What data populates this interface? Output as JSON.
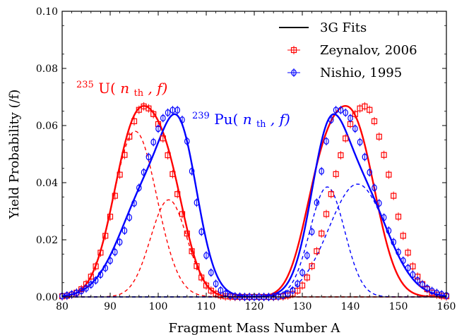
{
  "chart_data": {
    "type": "line",
    "xlabel": "Fragment Mass Number A",
    "ylabel": "Yield Probability (/f)",
    "xlim": [
      80,
      160
    ],
    "ylim": [
      0,
      0.1
    ],
    "xticks": [
      "80",
      "90",
      "100",
      "110",
      "120",
      "130",
      "140",
      "150",
      "160"
    ],
    "yticks": [
      "0.00",
      "0.02",
      "0.04",
      "0.06",
      "0.08",
      "0.10"
    ],
    "legend": {
      "position": "top-right",
      "entries": [
        "3G Fits",
        "Zeynalov, 2006",
        "Nishio, 1995"
      ]
    },
    "annotations": [
      {
        "sup": "235",
        "main": "U(",
        "var": "n",
        "sub": "th",
        "rest": ", f)",
        "color": "#ff0000"
      },
      {
        "sup": "239",
        "main": "Pu(",
        "var": "n",
        "sub": "th",
        "rest": ", f)",
        "color": "#0000ff"
      }
    ],
    "series": [
      {
        "name": "Zeynalov, 2006",
        "color": "#ff0000",
        "marker": "square",
        "x": [
          80,
          81,
          82,
          83,
          84,
          85,
          86,
          87,
          88,
          89,
          90,
          91,
          92,
          93,
          94,
          95,
          96,
          97,
          98,
          99,
          100,
          101,
          102,
          103,
          104,
          105,
          106,
          107,
          108,
          109,
          110,
          111,
          112,
          113,
          114,
          115,
          116,
          117,
          118,
          119,
          120,
          121,
          122,
          123,
          124,
          125,
          126,
          127,
          128,
          129,
          130,
          131,
          132,
          133,
          134,
          135,
          136,
          137,
          138,
          139,
          140,
          141,
          142,
          143,
          144,
          145,
          146,
          147,
          148,
          149,
          150,
          151,
          152,
          153,
          154,
          155,
          156,
          157,
          158,
          159,
          160
        ],
        "y": [
          0.0002,
          0.0004,
          0.0008,
          0.0015,
          0.0027,
          0.0045,
          0.0071,
          0.0107,
          0.0155,
          0.0214,
          0.0281,
          0.0354,
          0.0428,
          0.0497,
          0.0561,
          0.0615,
          0.0655,
          0.0667,
          0.066,
          0.064,
          0.0605,
          0.0555,
          0.0496,
          0.043,
          0.036,
          0.029,
          0.0222,
          0.016,
          0.0108,
          0.0068,
          0.004,
          0.0022,
          0.0011,
          0.0005,
          0.0002,
          0.0001,
          0.0,
          0.0,
          0.0,
          0.0,
          0.0,
          0.0,
          0.0,
          0.0,
          0.0,
          0.0001,
          0.0002,
          0.0005,
          0.0011,
          0.0022,
          0.004,
          0.0068,
          0.0108,
          0.016,
          0.0222,
          0.029,
          0.036,
          0.043,
          0.0496,
          0.0555,
          0.0605,
          0.064,
          0.066,
          0.0667,
          0.0655,
          0.0615,
          0.0561,
          0.0497,
          0.0428,
          0.0354,
          0.0281,
          0.0214,
          0.0155,
          0.0107,
          0.0071,
          0.0045,
          0.0027,
          0.0015,
          0.0008,
          0.0004,
          0.0002
        ]
      },
      {
        "name": "Nishio, 1995",
        "color": "#0000ff",
        "marker": "circle",
        "x": [
          80,
          81,
          82,
          83,
          84,
          85,
          86,
          87,
          88,
          89,
          90,
          91,
          92,
          93,
          94,
          95,
          96,
          97,
          98,
          99,
          100,
          101,
          102,
          103,
          104,
          105,
          106,
          107,
          108,
          109,
          110,
          111,
          112,
          113,
          114,
          115,
          116,
          117,
          118,
          119,
          120,
          121,
          122,
          123,
          124,
          125,
          126,
          127,
          128,
          129,
          130,
          131,
          132,
          133,
          134,
          135,
          136,
          137,
          138,
          139,
          140,
          141,
          142,
          143,
          144,
          145,
          146,
          147,
          148,
          149,
          150,
          151,
          152,
          153,
          154,
          155,
          156,
          157,
          158,
          159,
          160
        ],
        "y": [
          0.0003,
          0.0005,
          0.0009,
          0.0014,
          0.0021,
          0.003,
          0.0043,
          0.0058,
          0.0078,
          0.0101,
          0.0127,
          0.0157,
          0.0192,
          0.0232,
          0.0278,
          0.0328,
          0.0382,
          0.0436,
          0.049,
          0.0542,
          0.0589,
          0.0626,
          0.0645,
          0.0654,
          0.0654,
          0.062,
          0.0545,
          0.044,
          0.033,
          0.0228,
          0.0145,
          0.0085,
          0.0046,
          0.0023,
          0.0011,
          0.0005,
          0.0002,
          0.0001,
          0.0,
          0.0,
          0.0,
          0.0,
          0.0,
          0.0,
          0.0001,
          0.0002,
          0.0005,
          0.0011,
          0.0023,
          0.0046,
          0.0085,
          0.0145,
          0.0228,
          0.033,
          0.044,
          0.0545,
          0.062,
          0.0654,
          0.0654,
          0.0645,
          0.0626,
          0.0589,
          0.0542,
          0.049,
          0.0436,
          0.0382,
          0.0328,
          0.0278,
          0.0232,
          0.0192,
          0.0157,
          0.0127,
          0.0101,
          0.0078,
          0.0058,
          0.0043,
          0.003,
          0.0021,
          0.0014,
          0.0009,
          0.0005
        ]
      }
    ],
    "fits": [
      {
        "color": "#ff0000",
        "dash": false,
        "curve": "sum",
        "components": [
          {
            "amp": 0.058,
            "mu": 95.2,
            "sigma": 4.5
          },
          {
            "amp": 0.034,
            "mu": 102.2,
            "sigma": 3.8
          },
          {
            "amp": 0.058,
            "mu": 140.8,
            "sigma": 4.5
          },
          {
            "amp": 0.034,
            "mu": 133.8,
            "sigma": 3.8
          }
        ]
      },
      {
        "color": "#ff0000",
        "dash": true,
        "curve": "each",
        "components": [
          {
            "amp": 0.058,
            "mu": 95.2,
            "sigma": 4.5
          },
          {
            "amp": 0.034,
            "mu": 102.2,
            "sigma": 3.8
          }
        ]
      },
      {
        "color": "#0000ff",
        "dash": false,
        "curve": "sum",
        "components": [
          {
            "amp": 0.0395,
            "mu": 98.5,
            "sigma": 6.0
          },
          {
            "amp": 0.0385,
            "mu": 104.8,
            "sigma": 3.6
          },
          {
            "amp": 0.0395,
            "mu": 141.5,
            "sigma": 6.0
          },
          {
            "amp": 0.0385,
            "mu": 135.2,
            "sigma": 3.6
          }
        ]
      },
      {
        "color": "#0000ff",
        "dash": true,
        "curve": "each",
        "components": [
          {
            "amp": 0.0395,
            "mu": 141.5,
            "sigma": 6.0
          },
          {
            "amp": 0.0385,
            "mu": 135.2,
            "sigma": 3.6
          }
        ]
      }
    ]
  }
}
